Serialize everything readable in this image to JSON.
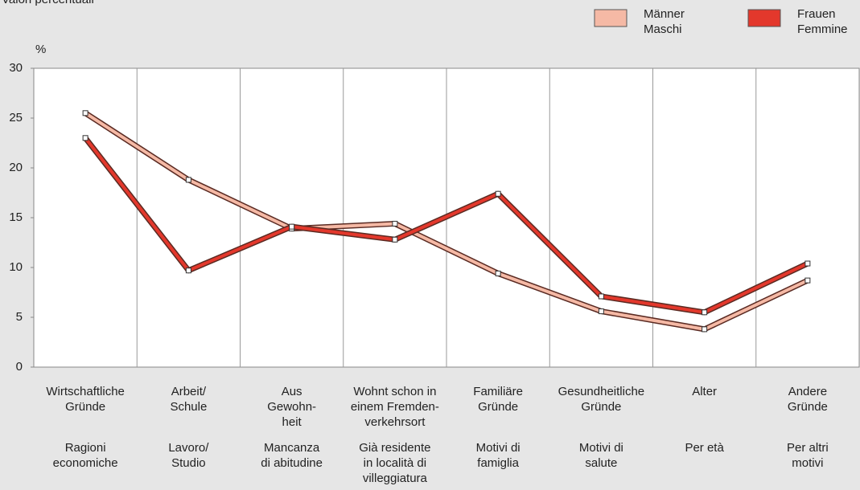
{
  "chart_data": {
    "type": "line",
    "subtitle": "Valori percentuali",
    "y_label": "%",
    "categories": [
      "Wirtschaftliche\nGründe",
      "Arbeit/\nSchule",
      "Aus\nGewohn-\nheit",
      "Wohnt schon in\neinem Fremden-\nverkehrsort",
      "Familiäre\nGründe",
      "Gesundheitliche\nGründe",
      "Alter",
      "Andere\nGründe"
    ],
    "categories_it": [
      "Ragioni\neconomiche",
      "Lavoro/\nStudio",
      "Mancanza\ndi abitudine",
      "Già residente\nin località di\nvilleggiatura",
      "Motivi di\nfamiglia",
      "Motivi di\nsalute",
      "Per età",
      "Per altri\nmotivi"
    ],
    "series": [
      {
        "name": "Männer\nMaschi",
        "color": "#f5b9a5",
        "values": [
          25.5,
          18.8,
          13.9,
          14.4,
          9.4,
          5.6,
          3.8,
          8.7
        ]
      },
      {
        "name": "Frauen\nFemmine",
        "color": "#e3382c",
        "values": [
          23.0,
          9.7,
          14.1,
          12.8,
          17.4,
          7.1,
          5.5,
          10.4
        ]
      }
    ],
    "ylim": [
      0,
      30
    ],
    "yticks": [
      0,
      5,
      10,
      15,
      20,
      25,
      30
    ],
    "grid": "vertical"
  }
}
